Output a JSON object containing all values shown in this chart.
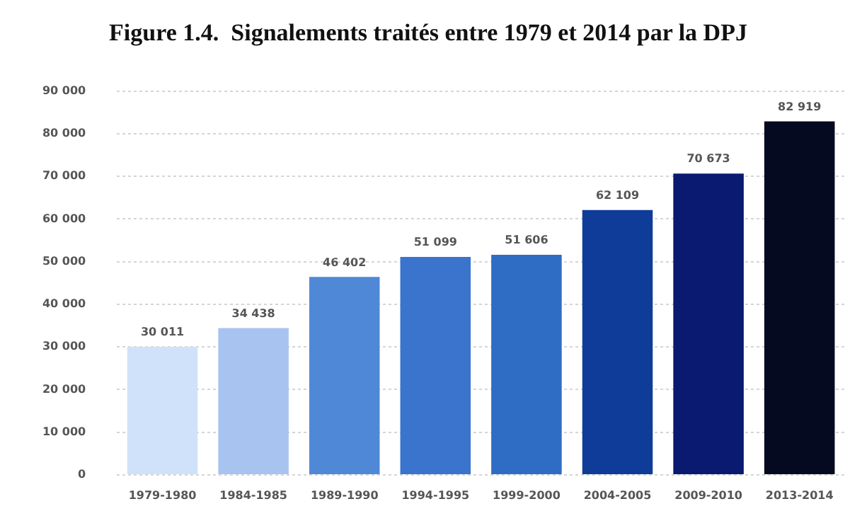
{
  "chart_data": {
    "type": "bar",
    "title": "Figure 1.4.  Signalements traités entre 1979 et 2014 par la DPJ",
    "categories": [
      "1979-1980",
      "1984-1985",
      "1989-1990",
      "1994-1995",
      "1999-2000",
      "2004-2005",
      "2009-2010",
      "2013-2014"
    ],
    "values": [
      30011,
      34438,
      46402,
      51099,
      51606,
      62109,
      70673,
      82919
    ],
    "colors": [
      "#cfe2fa",
      "#a9c3f0",
      "#5088d8",
      "#3a74cc",
      "#2f6cc4",
      "#0f3c99",
      "#0a1a70",
      "#050a20"
    ],
    "value_labels": [
      "30 011",
      "34 438",
      "46 402",
      "51 099",
      "51 606",
      "62 109",
      "70 673",
      "82 919"
    ],
    "ylim": [
      0,
      90000
    ],
    "yticks": [
      0,
      {
        "value": 10000,
        "label": "10 000"
      },
      {
        "value": 20000,
        "label": "20 000"
      },
      {
        "value": 30000,
        "label": "30 000"
      },
      {
        "value": 40000,
        "label": "40 000"
      },
      {
        "value": 50000,
        "label": "50 000"
      },
      {
        "value": 60000,
        "label": "60 000"
      },
      {
        "value": 70000,
        "label": "70 000"
      },
      {
        "value": 80000,
        "label": "80 000"
      },
      {
        "value": 90000,
        "label": "90 000"
      }
    ],
    "grid": "y",
    "legend": false
  }
}
